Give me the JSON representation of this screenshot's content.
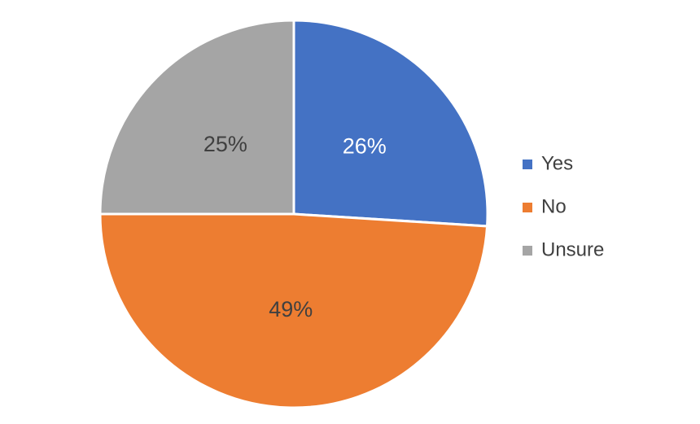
{
  "chart_data": {
    "type": "pie",
    "categories": [
      "Yes",
      "No",
      "Unsure"
    ],
    "values": [
      26,
      49,
      25
    ],
    "value_labels": [
      "26%",
      "49%",
      "25%"
    ],
    "colors": [
      "#4472c4",
      "#ed7d31",
      "#a5a5a5"
    ],
    "label_colors": [
      "#ffffff",
      "#404040",
      "#404040"
    ],
    "legend": "right"
  }
}
